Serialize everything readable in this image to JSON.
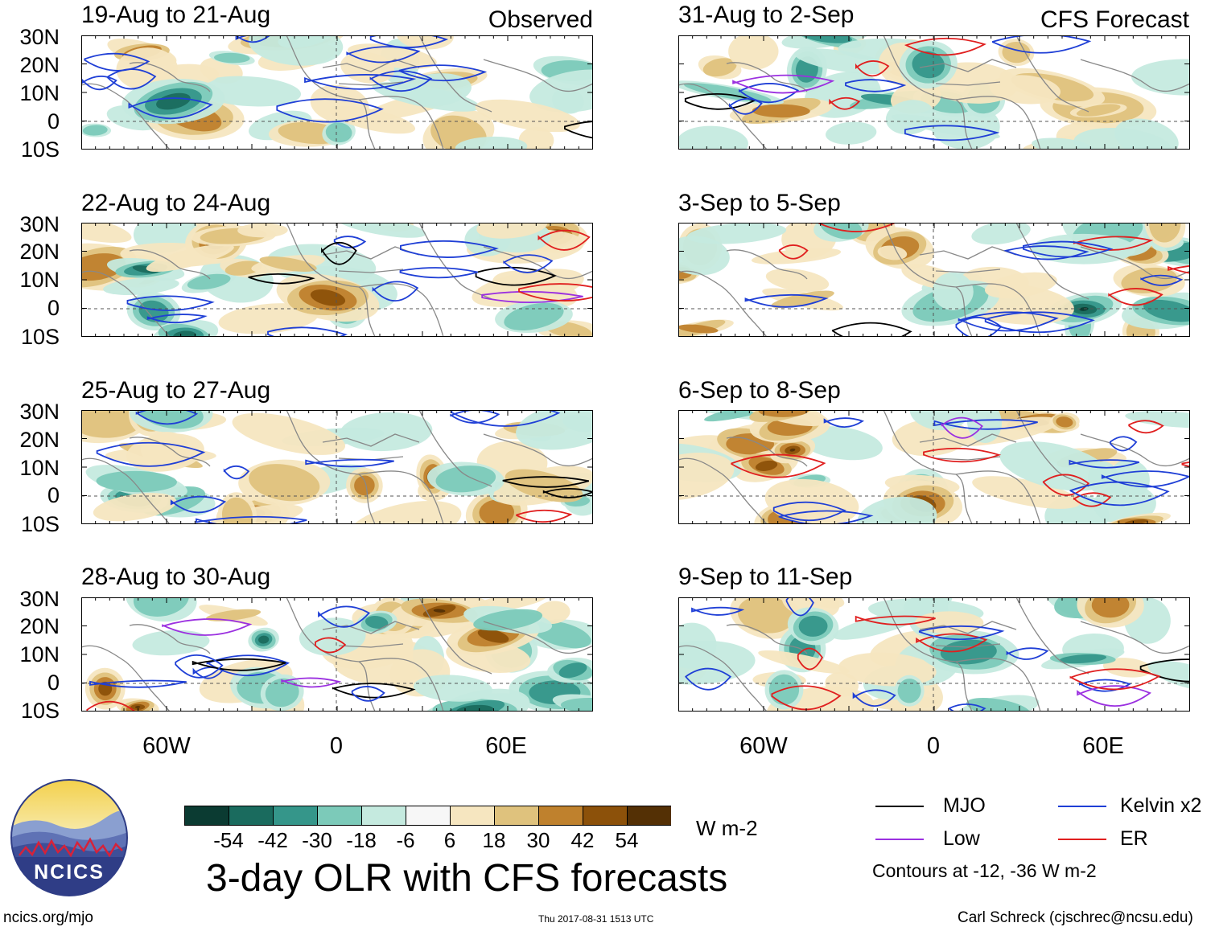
{
  "header": {
    "observed_label": "Observed",
    "forecast_label": "CFS Forecast"
  },
  "panels": {
    "p0": {
      "title": "19-Aug to 21-Aug"
    },
    "p1": {
      "title": "22-Aug to 24-Aug"
    },
    "p2": {
      "title": "25-Aug to 27-Aug"
    },
    "p3": {
      "title": "28-Aug to 30-Aug"
    },
    "p4": {
      "title": "31-Aug to 2-Sep"
    },
    "p5": {
      "title": "3-Sep to 5-Sep"
    },
    "p6": {
      "title": "6-Sep to 8-Sep"
    },
    "p7": {
      "title": "9-Sep to 11-Sep"
    }
  },
  "axes": {
    "lat_labels": [
      "30N",
      "20N",
      "10N",
      "0",
      "10S"
    ],
    "lon_labels": [
      "60W",
      "0",
      "60E"
    ]
  },
  "colorbar": {
    "labels": [
      "-54",
      "-42",
      "-30",
      "-18",
      "-6",
      "6",
      "18",
      "30",
      "42",
      "54"
    ],
    "colors": [
      "#0b3b32",
      "#1a6b5e",
      "#35968a",
      "#7ccab9",
      "#c5eadf",
      "#f7f7f7",
      "#f6e6c0",
      "#dfc27d",
      "#bf812d",
      "#8c510a",
      "#543005"
    ],
    "units": "W m-2"
  },
  "legend": {
    "items": [
      {
        "label": "MJO",
        "color": "#000000"
      },
      {
        "label": "Kelvin x2",
        "color": "#1f3fd6"
      },
      {
        "label": "Low",
        "color": "#9b30e0"
      },
      {
        "label": "ER",
        "color": "#e01f1f"
      }
    ],
    "contour_note": "Contours at -12, -36 W m-2"
  },
  "logo": {
    "text": "NCICS"
  },
  "title": "3-day OLR with CFS forecasts",
  "footer": {
    "url": "ncics.org/mjo",
    "timestamp": "Thu 2017-08-31 1513 UTC",
    "author": "Carl Schreck (cjschrec@ncsu.edu)"
  }
}
